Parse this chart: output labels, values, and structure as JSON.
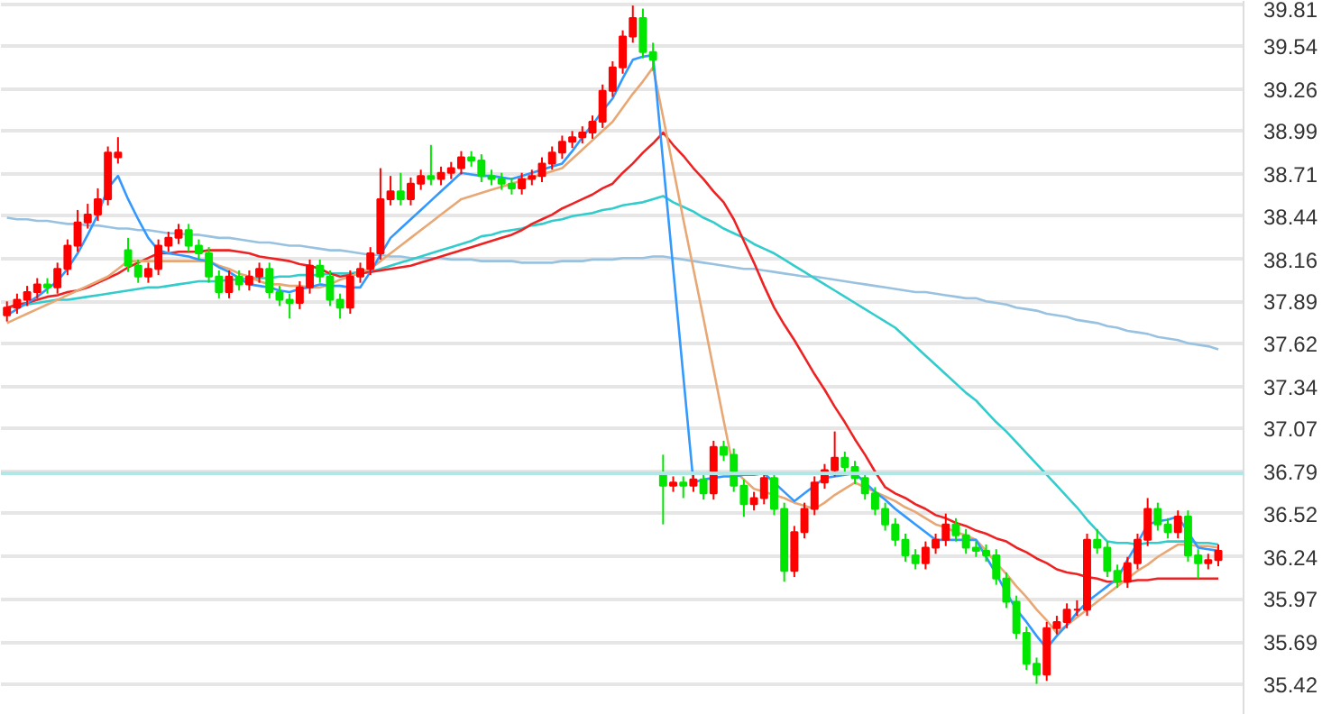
{
  "chart_data": {
    "type": "candlestick",
    "categories": [
      null,
      null,
      null,
      null,
      null,
      null,
      null,
      null,
      null,
      null,
      null,
      null,
      null,
      null,
      null,
      null,
      null,
      null,
      null,
      null,
      null,
      null,
      null,
      null,
      null,
      null,
      null,
      null,
      null,
      null,
      null,
      null,
      null,
      null,
      null,
      null,
      null,
      null,
      null,
      null,
      null,
      null,
      null,
      null,
      null,
      null,
      null,
      null,
      null,
      null,
      null,
      null,
      null,
      null,
      null,
      null,
      null,
      null,
      null,
      null,
      null,
      null,
      null,
      null,
      null,
      null,
      null,
      null,
      null,
      null,
      null,
      null,
      null,
      null,
      null,
      null,
      null,
      null,
      null,
      null,
      null,
      null,
      null,
      null,
      null,
      null,
      null,
      null,
      null,
      null,
      null,
      null,
      null,
      null,
      null,
      null,
      null,
      null,
      null,
      null,
      null,
      null,
      null,
      null,
      null,
      null,
      null,
      null,
      null,
      null,
      null,
      null,
      null,
      null,
      null,
      null,
      null,
      null,
      null,
      null,
      null
    ],
    "ohlc": [
      [
        37.8,
        37.89,
        37.76,
        37.85
      ],
      [
        37.85,
        37.94,
        37.81,
        37.9
      ],
      [
        37.9,
        37.99,
        37.86,
        37.95
      ],
      [
        37.95,
        38.04,
        37.91,
        38.0
      ],
      [
        38.0,
        38.04,
        37.94,
        37.98
      ],
      [
        37.98,
        38.14,
        37.94,
        38.1
      ],
      [
        38.1,
        38.29,
        38.06,
        38.25
      ],
      [
        38.25,
        38.48,
        38.21,
        38.4
      ],
      [
        38.4,
        38.52,
        38.36,
        38.45
      ],
      [
        38.45,
        38.62,
        38.41,
        38.55
      ],
      [
        38.55,
        38.89,
        38.51,
        38.85
      ],
      [
        38.82,
        38.95,
        38.78,
        38.85
      ],
      [
        38.22,
        38.3,
        38.08,
        38.12
      ],
      [
        38.12,
        38.16,
        38.01,
        38.05
      ],
      [
        38.05,
        38.14,
        38.01,
        38.1
      ],
      [
        38.1,
        38.29,
        38.06,
        38.25
      ],
      [
        38.25,
        38.34,
        38.21,
        38.3
      ],
      [
        38.3,
        38.39,
        38.26,
        38.35
      ],
      [
        38.35,
        38.39,
        38.21,
        38.25
      ],
      [
        38.25,
        38.29,
        38.16,
        38.2
      ],
      [
        38.2,
        38.24,
        38.01,
        38.05
      ],
      [
        38.05,
        38.09,
        37.91,
        37.95
      ],
      [
        37.95,
        38.09,
        37.91,
        38.05
      ],
      [
        38.05,
        38.09,
        37.96,
        38.0
      ],
      [
        38.0,
        38.09,
        37.96,
        38.05
      ],
      [
        38.05,
        38.14,
        38.01,
        38.1
      ],
      [
        38.1,
        38.14,
        37.91,
        37.95
      ],
      [
        37.95,
        37.99,
        37.86,
        37.9
      ],
      [
        37.9,
        37.94,
        37.78,
        37.88
      ],
      [
        37.88,
        38.02,
        37.84,
        37.98
      ],
      [
        37.98,
        38.16,
        37.94,
        38.12
      ],
      [
        38.12,
        38.16,
        38.01,
        38.05
      ],
      [
        38.05,
        38.09,
        37.86,
        37.9
      ],
      [
        37.9,
        37.94,
        37.78,
        37.85
      ],
      [
        37.85,
        38.09,
        37.81,
        38.05
      ],
      [
        38.05,
        38.14,
        38.01,
        38.1
      ],
      [
        38.1,
        38.24,
        38.06,
        38.2
      ],
      [
        38.2,
        38.75,
        38.16,
        38.55
      ],
      [
        38.55,
        38.7,
        38.51,
        38.6
      ],
      [
        38.6,
        38.72,
        38.51,
        38.55
      ],
      [
        38.55,
        38.69,
        38.51,
        38.65
      ],
      [
        38.65,
        38.74,
        38.61,
        38.7
      ],
      [
        38.7,
        38.9,
        38.64,
        38.68
      ],
      [
        38.68,
        38.76,
        38.64,
        38.72
      ],
      [
        38.72,
        38.79,
        38.68,
        38.75
      ],
      [
        38.75,
        38.86,
        38.71,
        38.82
      ],
      [
        38.82,
        38.86,
        38.76,
        38.8
      ],
      [
        38.8,
        38.84,
        38.66,
        38.7
      ],
      [
        38.7,
        38.74,
        38.64,
        38.68
      ],
      [
        38.68,
        38.72,
        38.61,
        38.65
      ],
      [
        38.65,
        38.69,
        38.58,
        38.62
      ],
      [
        38.62,
        38.72,
        38.58,
        38.68
      ],
      [
        38.68,
        38.74,
        38.64,
        38.7
      ],
      [
        38.7,
        38.82,
        38.66,
        38.78
      ],
      [
        38.78,
        38.89,
        38.74,
        38.85
      ],
      [
        38.85,
        38.96,
        38.81,
        38.92
      ],
      [
        38.92,
        38.99,
        38.88,
        38.95
      ],
      [
        38.95,
        39.02,
        38.91,
        38.98
      ],
      [
        38.98,
        39.09,
        38.94,
        39.05
      ],
      [
        39.05,
        39.29,
        39.01,
        39.25
      ],
      [
        39.25,
        39.44,
        39.21,
        39.4
      ],
      [
        39.4,
        39.64,
        39.36,
        39.6
      ],
      [
        39.6,
        39.8,
        39.56,
        39.72
      ],
      [
        39.72,
        39.78,
        39.46,
        39.5
      ],
      [
        39.5,
        39.56,
        39.38,
        39.45
      ],
      [
        36.78,
        36.9,
        36.45,
        36.7
      ],
      [
        36.7,
        36.76,
        36.66,
        36.72
      ],
      [
        36.72,
        36.76,
        36.62,
        36.7
      ],
      [
        36.7,
        36.78,
        36.66,
        36.74
      ],
      [
        36.74,
        36.78,
        36.61,
        36.65
      ],
      [
        36.65,
        36.99,
        36.61,
        36.95
      ],
      [
        36.95,
        36.99,
        36.86,
        36.9
      ],
      [
        36.9,
        36.94,
        36.66,
        36.7
      ],
      [
        36.7,
        36.74,
        36.5,
        36.58
      ],
      [
        36.58,
        36.66,
        36.54,
        36.62
      ],
      [
        36.62,
        36.79,
        36.58,
        36.75
      ],
      [
        36.75,
        36.79,
        36.51,
        36.55
      ],
      [
        36.55,
        36.59,
        36.08,
        36.15
      ],
      [
        36.15,
        36.44,
        36.11,
        36.4
      ],
      [
        36.4,
        36.59,
        36.36,
        36.55
      ],
      [
        36.55,
        36.76,
        36.51,
        36.72
      ],
      [
        36.72,
        36.84,
        36.68,
        36.8
      ],
      [
        36.8,
        37.05,
        36.76,
        36.88
      ],
      [
        36.88,
        36.92,
        36.78,
        36.82
      ],
      [
        36.82,
        36.86,
        36.71,
        36.75
      ],
      [
        36.75,
        36.79,
        36.61,
        36.65
      ],
      [
        36.65,
        36.69,
        36.51,
        36.55
      ],
      [
        36.55,
        36.59,
        36.41,
        36.45
      ],
      [
        36.45,
        36.49,
        36.31,
        36.35
      ],
      [
        36.35,
        36.39,
        36.21,
        36.25
      ],
      [
        36.25,
        36.29,
        36.16,
        36.2
      ],
      [
        36.2,
        36.34,
        36.16,
        36.3
      ],
      [
        36.3,
        36.39,
        36.26,
        36.35
      ],
      [
        36.35,
        36.52,
        36.31,
        36.45
      ],
      [
        36.45,
        36.49,
        36.34,
        36.38
      ],
      [
        36.38,
        36.42,
        36.26,
        36.3
      ],
      [
        36.3,
        36.34,
        36.24,
        36.28
      ],
      [
        36.28,
        36.32,
        36.21,
        36.25
      ],
      [
        36.25,
        36.29,
        36.06,
        36.1
      ],
      [
        36.1,
        36.14,
        35.91,
        35.95
      ],
      [
        35.95,
        35.99,
        35.71,
        35.75
      ],
      [
        35.75,
        35.79,
        35.51,
        35.55
      ],
      [
        35.55,
        35.59,
        35.42,
        35.48
      ],
      [
        35.48,
        35.82,
        35.44,
        35.78
      ],
      [
        35.78,
        35.86,
        35.74,
        35.82
      ],
      [
        35.82,
        35.94,
        35.78,
        35.9
      ],
      [
        35.9,
        35.96,
        35.86,
        35.9
      ],
      [
        35.9,
        36.39,
        35.86,
        36.35
      ],
      [
        36.35,
        36.42,
        36.26,
        36.3
      ],
      [
        36.3,
        36.34,
        36.11,
        36.15
      ],
      [
        36.15,
        36.19,
        36.04,
        36.08
      ],
      [
        36.08,
        36.24,
        36.04,
        36.2
      ],
      [
        36.2,
        36.39,
        36.16,
        36.35
      ],
      [
        36.35,
        36.62,
        36.31,
        36.55
      ],
      [
        36.55,
        36.59,
        36.41,
        36.45
      ],
      [
        36.45,
        36.49,
        36.36,
        36.4
      ],
      [
        36.4,
        36.54,
        36.36,
        36.5
      ],
      [
        36.5,
        36.54,
        36.21,
        36.25
      ],
      [
        36.25,
        36.29,
        36.1,
        36.2
      ],
      [
        36.2,
        36.26,
        36.16,
        36.22
      ],
      [
        36.22,
        36.32,
        36.18,
        36.28
      ]
    ],
    "colors": [
      "#ff0000",
      "#ff0000",
      "#ff0000",
      "#ff0000",
      "#00e600",
      "#ff0000",
      "#ff0000",
      "#ff0000",
      "#ff0000",
      "#ff0000",
      "#ff0000",
      "#ff0000",
      "#00e600",
      "#00e600",
      "#ff0000",
      "#ff0000",
      "#ff0000",
      "#ff0000",
      "#00e600",
      "#00e600",
      "#00e600",
      "#00e600",
      "#ff0000",
      "#00e600",
      "#ff0000",
      "#ff0000",
      "#00e600",
      "#00e600",
      "#00e600",
      "#ff0000",
      "#ff0000",
      "#00e600",
      "#00e600",
      "#00e600",
      "#ff0000",
      "#ff0000",
      "#ff0000",
      "#ff0000",
      "#ff0000",
      "#00e600",
      "#ff0000",
      "#ff0000",
      "#00e600",
      "#ff0000",
      "#ff0000",
      "#ff0000",
      "#00e600",
      "#00e600",
      "#00e600",
      "#00e600",
      "#00e600",
      "#ff0000",
      "#ff0000",
      "#ff0000",
      "#ff0000",
      "#ff0000",
      "#ff0000",
      "#ff0000",
      "#ff0000",
      "#ff0000",
      "#ff0000",
      "#ff0000",
      "#ff0000",
      "#00e600",
      "#00e600",
      "#00e600",
      "#ff0000",
      "#00e600",
      "#ff0000",
      "#00e600",
      "#ff0000",
      "#00e600",
      "#00e600",
      "#00e600",
      "#ff0000",
      "#ff0000",
      "#00e600",
      "#00e600",
      "#ff0000",
      "#ff0000",
      "#ff0000",
      "#ff0000",
      "#ff0000",
      "#00e600",
      "#00e600",
      "#00e600",
      "#00e600",
      "#00e600",
      "#00e600",
      "#00e600",
      "#00e600",
      "#ff0000",
      "#ff0000",
      "#ff0000",
      "#00e600",
      "#00e600",
      "#00e600",
      "#00e600",
      "#00e600",
      "#00e600",
      "#00e600",
      "#00e600",
      "#00e600",
      "#ff0000",
      "#ff0000",
      "#ff0000",
      "#ff0000",
      "#ff0000",
      "#00e600",
      "#00e600",
      "#00e600",
      "#ff0000",
      "#ff0000",
      "#ff0000",
      "#00e600",
      "#00e600",
      "#ff0000",
      "#00e600",
      "#00e600",
      "#ff0000",
      "#ff0000"
    ],
    "series": [
      {
        "type": "line",
        "color": "#99c2e0",
        "values": [
          38.43,
          38.42,
          38.42,
          38.41,
          38.41,
          38.4,
          38.39,
          38.39,
          38.38,
          38.38,
          38.37,
          38.36,
          38.36,
          38.35,
          38.35,
          38.34,
          38.33,
          38.33,
          38.32,
          38.32,
          38.31,
          38.3,
          38.3,
          38.29,
          38.28,
          38.27,
          38.27,
          38.26,
          38.25,
          38.25,
          38.24,
          38.23,
          38.22,
          38.22,
          38.21,
          38.2,
          38.19,
          38.19,
          38.18,
          38.18,
          38.17,
          38.17,
          38.17,
          38.17,
          38.16,
          38.16,
          38.16,
          38.15,
          38.15,
          38.15,
          38.15,
          38.14,
          38.14,
          38.14,
          38.14,
          38.15,
          38.15,
          38.15,
          38.16,
          38.16,
          38.16,
          38.17,
          38.17,
          38.17,
          38.18,
          38.18,
          38.17,
          38.16,
          38.15,
          38.14,
          38.13,
          38.12,
          38.11,
          38.1,
          38.1,
          38.09,
          38.08,
          38.07,
          38.06,
          38.05,
          38.05,
          38.04,
          38.03,
          38.02,
          38.01,
          38.0,
          37.99,
          37.98,
          37.97,
          37.96,
          37.95,
          37.95,
          37.94,
          37.93,
          37.92,
          37.91,
          37.91,
          37.89,
          37.88,
          37.87,
          37.85,
          37.84,
          37.83,
          37.81,
          37.8,
          37.79,
          37.77,
          37.76,
          37.75,
          37.73,
          37.72,
          37.7,
          37.69,
          37.68,
          37.66,
          37.65,
          37.64,
          37.62,
          37.61,
          37.6,
          37.58
        ]
      },
      {
        "type": "line",
        "color": "#33cccc",
        "values": [
          37.85,
          37.86,
          37.87,
          37.88,
          37.89,
          37.9,
          37.9,
          37.91,
          37.92,
          37.93,
          37.94,
          37.95,
          37.96,
          37.97,
          37.98,
          37.98,
          37.99,
          38.0,
          38.01,
          38.02,
          38.02,
          38.02,
          38.03,
          38.03,
          38.04,
          38.04,
          38.04,
          38.05,
          38.05,
          38.06,
          38.06,
          38.06,
          38.07,
          38.07,
          38.07,
          38.08,
          38.08,
          38.1,
          38.12,
          38.14,
          38.16,
          38.18,
          38.2,
          38.22,
          38.24,
          38.26,
          38.28,
          38.31,
          38.32,
          38.34,
          38.35,
          38.36,
          38.38,
          38.39,
          38.41,
          38.42,
          38.44,
          38.45,
          38.46,
          38.48,
          38.49,
          38.51,
          38.52,
          38.53,
          38.55,
          38.57,
          38.53,
          38.5,
          38.47,
          38.43,
          38.4,
          38.36,
          38.33,
          38.3,
          38.26,
          38.23,
          38.2,
          38.16,
          38.12,
          38.08,
          38.04,
          38.0,
          37.96,
          37.92,
          37.88,
          37.84,
          37.8,
          37.76,
          37.72,
          37.66,
          37.6,
          37.54,
          37.48,
          37.42,
          37.36,
          37.3,
          37.25,
          37.18,
          37.11,
          37.05,
          36.98,
          36.91,
          36.84,
          36.77,
          36.7,
          36.63,
          36.56,
          36.48,
          36.41,
          36.34,
          36.33,
          36.33,
          36.32,
          36.33,
          36.33,
          36.34,
          36.34,
          36.34,
          36.33,
          36.33,
          36.32
        ]
      },
      {
        "type": "line",
        "color": "#ee2222",
        "values": [
          37.85,
          37.87,
          37.88,
          37.9,
          37.92,
          37.93,
          37.95,
          37.96,
          37.98,
          38.01,
          38.04,
          38.07,
          38.11,
          38.14,
          38.17,
          38.2,
          38.2,
          38.21,
          38.21,
          38.21,
          38.22,
          38.22,
          38.22,
          38.21,
          38.2,
          38.18,
          38.17,
          38.16,
          38.15,
          38.13,
          38.12,
          38.1,
          38.07,
          38.05,
          38.06,
          38.07,
          38.08,
          38.09,
          38.1,
          38.11,
          38.12,
          38.14,
          38.16,
          38.18,
          38.2,
          38.22,
          38.24,
          38.26,
          38.28,
          38.3,
          38.32,
          38.35,
          38.39,
          38.42,
          38.45,
          38.49,
          38.52,
          38.55,
          38.58,
          38.62,
          38.65,
          38.72,
          38.78,
          38.85,
          38.91,
          38.98,
          38.9,
          38.83,
          38.75,
          38.68,
          38.6,
          38.53,
          38.42,
          38.28,
          38.14,
          37.99,
          37.85,
          37.74,
          37.64,
          37.53,
          37.42,
          37.32,
          37.21,
          37.11,
          37.0,
          36.9,
          36.79,
          36.69,
          36.65,
          36.62,
          36.58,
          36.55,
          36.51,
          36.49,
          36.46,
          36.44,
          36.41,
          36.39,
          36.36,
          36.34,
          36.3,
          36.27,
          36.23,
          36.2,
          36.16,
          36.14,
          36.13,
          36.11,
          36.1,
          36.08,
          36.08,
          36.08,
          36.09,
          36.09,
          36.1,
          36.1,
          36.1,
          36.1,
          36.1,
          36.1,
          36.1
        ]
      },
      {
        "type": "line",
        "color": "#e8a875",
        "values": [
          37.75,
          37.78,
          37.81,
          37.84,
          37.87,
          37.9,
          37.93,
          37.96,
          37.99,
          38.02,
          38.05,
          38.1,
          38.15,
          38.15,
          38.15,
          38.15,
          38.15,
          38.15,
          38.15,
          38.15,
          38.15,
          38.12,
          38.1,
          38.07,
          38.05,
          38.02,
          38.0,
          38.0,
          37.99,
          37.99,
          37.98,
          37.98,
          38.0,
          38.03,
          38.05,
          38.08,
          38.1,
          38.15,
          38.2,
          38.25,
          38.3,
          38.35,
          38.4,
          38.45,
          38.5,
          38.55,
          38.57,
          38.59,
          38.61,
          38.63,
          38.65,
          38.67,
          38.69,
          38.71,
          38.73,
          38.75,
          38.81,
          38.87,
          38.93,
          38.99,
          39.05,
          39.14,
          39.23,
          39.31,
          39.4,
          39.08,
          38.75,
          38.42,
          38.1,
          37.78,
          37.45,
          37.12,
          36.8,
          36.74,
          36.68,
          36.66,
          36.64,
          36.62,
          36.59,
          36.57,
          36.55,
          36.59,
          36.64,
          36.68,
          36.72,
          36.69,
          36.66,
          36.63,
          36.6,
          36.56,
          36.53,
          36.49,
          36.45,
          36.43,
          36.4,
          36.38,
          36.35,
          36.28,
          36.2,
          36.13,
          36.05,
          35.98,
          35.9,
          35.83,
          35.75,
          35.8,
          35.85,
          35.9,
          35.95,
          36.0,
          36.05,
          36.1,
          36.15,
          36.19,
          36.24,
          36.28,
          36.32,
          36.32,
          36.31,
          36.31,
          36.3
        ]
      },
      {
        "type": "line",
        "color": "#3399ff",
        "values": [
          37.8,
          37.84,
          37.88,
          37.92,
          37.97,
          38.02,
          38.1,
          38.2,
          38.32,
          38.45,
          38.62,
          38.7,
          38.55,
          38.42,
          38.3,
          38.22,
          38.2,
          38.19,
          38.18,
          38.16,
          38.15,
          38.11,
          38.08,
          38.04,
          38.0,
          37.99,
          37.98,
          37.96,
          37.95,
          37.97,
          37.98,
          38.0,
          37.99,
          37.99,
          37.98,
          37.98,
          38.08,
          38.19,
          38.3,
          38.36,
          38.42,
          38.48,
          38.54,
          38.6,
          38.66,
          38.72,
          38.71,
          38.7,
          38.7,
          38.69,
          38.68,
          38.7,
          38.72,
          38.74,
          38.76,
          38.78,
          38.86,
          38.95,
          39.03,
          39.12,
          39.2,
          39.33,
          39.45,
          39.47,
          39.48,
          38.79,
          38.1,
          37.41,
          36.72,
          36.74,
          36.75,
          36.76,
          36.76,
          36.77,
          36.77,
          36.78,
          36.72,
          36.66,
          36.6,
          36.65,
          36.7,
          36.75,
          36.76,
          36.77,
          36.78,
          36.72,
          36.66,
          36.61,
          36.55,
          36.5,
          36.45,
          36.4,
          36.35,
          36.35,
          36.35,
          36.35,
          36.35,
          36.24,
          36.13,
          36.01,
          35.9,
          35.82,
          35.73,
          35.65,
          35.73,
          35.8,
          35.88,
          35.95,
          36.0,
          36.05,
          36.1,
          36.22,
          36.33,
          36.45,
          36.47,
          36.48,
          36.5,
          36.4,
          36.3,
          36.29,
          36.28
        ]
      }
    ],
    "ylim": [
      35.22,
      39.83
    ],
    "yticks": [
      35.42,
      35.69,
      35.97,
      36.24,
      36.52,
      36.79,
      37.07,
      37.34,
      37.62,
      37.89,
      38.16,
      38.44,
      38.71,
      38.99,
      39.26,
      39.54,
      39.81
    ],
    "tick_labels": "y",
    "grid": "y",
    "ref_lines": [
      {
        "axis": "y",
        "value": 36.78,
        "color": "#b0e8e8"
      }
    ]
  }
}
